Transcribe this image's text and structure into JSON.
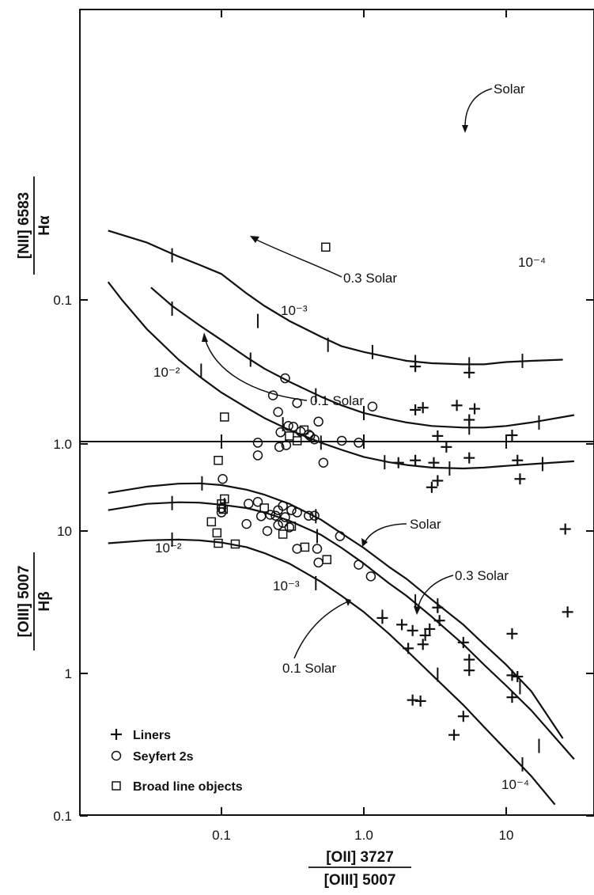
{
  "chart_data": [
    {
      "type": "scatter",
      "panel": "top",
      "yscale": "log",
      "xscale": "log",
      "ylim": [
        0.02,
        6
      ],
      "xlim": [
        0.012,
        50
      ],
      "ylabel": {
        "line1": "[NII] 6583",
        "line2": "Hα"
      },
      "yticks": [
        {
          "value": 0.1,
          "label": "0.1"
        },
        {
          "value": 1.0,
          "label": "1.0"
        }
      ],
      "annotations": {
        "solar": "Solar",
        "solar_03": "0.3 Solar",
        "solar_01": "0.1 Solar",
        "u_1e2": "10⁻²",
        "u_1e3": "10⁻³",
        "u_1e4": "10⁻⁴"
      },
      "series": [
        {
          "kind": "model-curve",
          "metallicity": "Solar",
          "x": [
            0.016,
            0.02,
            0.03,
            0.05,
            0.07,
            0.1,
            0.15,
            0.2,
            0.3,
            0.5,
            0.7,
            1.0,
            1.5,
            2,
            3,
            5,
            7,
            10,
            15,
            30
          ],
          "y": [
            0.075,
            0.1,
            0.16,
            0.26,
            0.34,
            0.44,
            0.56,
            0.66,
            0.8,
            0.98,
            1.1,
            1.23,
            1.34,
            1.4,
            1.46,
            1.48,
            1.46,
            1.42,
            1.38,
            1.32
          ]
        },
        {
          "kind": "model-curve",
          "metallicity": "0.3 Solar",
          "x": [
            0.032,
            0.045,
            0.07,
            0.1,
            0.15,
            0.2,
            0.3,
            0.5,
            0.7,
            1.0,
            1.5,
            2,
            3,
            5,
            7,
            10,
            15,
            30
          ],
          "y": [
            0.082,
            0.11,
            0.15,
            0.19,
            0.25,
            0.3,
            0.37,
            0.47,
            0.54,
            0.61,
            0.67,
            0.71,
            0.75,
            0.77,
            0.77,
            0.75,
            0.71,
            0.63
          ]
        },
        {
          "kind": "model-curve",
          "metallicity": "0.1 Solar",
          "x": [
            0.016,
            0.03,
            0.05,
            0.07,
            0.1,
            0.15,
            0.2,
            0.3,
            0.5,
            0.7,
            1.0,
            1.5,
            2,
            3,
            5,
            7,
            10,
            15,
            25
          ],
          "y": [
            0.033,
            0.04,
            0.05,
            0.057,
            0.066,
            0.09,
            0.11,
            0.14,
            0.18,
            0.21,
            0.23,
            0.25,
            0.265,
            0.275,
            0.28,
            0.28,
            0.27,
            0.265,
            0.26
          ]
        },
        {
          "kind": "ionization-ticks",
          "x": [
            0.072,
            0.27,
            0.5,
            1.4,
            4.0,
            18,
            0.045,
            0.16,
            0.46,
            1.0,
            5.5,
            17,
            0.045,
            0.18,
            0.56,
            1.15,
            2.3,
            5.5,
            13
          ],
          "y": [
            0.31,
            0.73,
            0.98,
            1.34,
            1.48,
            1.38,
            0.115,
            0.26,
            0.46,
            0.61,
            0.77,
            0.71,
            0.049,
            0.14,
            0.205,
            0.23,
            0.27,
            0.28,
            0.265
          ]
        },
        {
          "name": "Liners",
          "marker": "plus",
          "x": [
            26,
            3.0,
            3.3,
            12.5,
            1.75,
            2.3,
            3.1,
            12,
            5.5,
            3.8,
            3.3,
            11,
            2.3,
            2.6,
            4.5,
            5.5,
            6,
            2.3,
            5.5
          ],
          "y": [
            3.9,
            2.0,
            1.8,
            1.75,
            1.35,
            1.3,
            1.35,
            1.3,
            1.25,
            1.05,
            0.88,
            0.87,
            0.58,
            0.56,
            0.54,
            0.68,
            0.57,
            0.29,
            0.32
          ]
        },
        {
          "name": "Seyfert 2s",
          "marker": "circle",
          "x": [
            0.155,
            0.102,
            0.18,
            0.18,
            0.255,
            0.285,
            0.26,
            0.32,
            0.295,
            0.36,
            0.41,
            0.45,
            0.52,
            0.7,
            0.92,
            1.15,
            0.25,
            0.23,
            0.34,
            0.28,
            0.48,
            0.42
          ],
          "y": [
            2.6,
            1.75,
            1.2,
            0.98,
            1.05,
            1.02,
            0.83,
            0.76,
            0.75,
            0.82,
            0.86,
            0.93,
            1.35,
            0.95,
            0.98,
            0.55,
            0.6,
            0.46,
            0.52,
            0.35,
            0.7,
            0.88
          ]
        },
        {
          "name": "Broad line objects",
          "marker": "square",
          "x": [
            0.095,
            0.105,
            0.34,
            0.3,
            0.38,
            0.54
          ],
          "y": [
            1.3,
            0.65,
            0.95,
            0.88,
            0.8,
            0.043
          ]
        }
      ]
    },
    {
      "type": "scatter",
      "panel": "bottom",
      "yscale": "log",
      "xscale": "log",
      "ylim": [
        0.1,
        40
      ],
      "xlim": [
        0.012,
        50
      ],
      "xlabel": {
        "line1": "[OII] 3727",
        "line2": "[OIII] 5007"
      },
      "ylabel": {
        "line1": "[OIII] 5007",
        "line2": "Hβ"
      },
      "xticks": [
        {
          "value": 0.1,
          "label": "0.1"
        },
        {
          "value": 1.0,
          "label": "1.0"
        },
        {
          "value": 10,
          "label": "10"
        }
      ],
      "yticks": [
        {
          "value": 0.1,
          "label": "0.1"
        },
        {
          "value": 1,
          "label": "1"
        },
        {
          "value": 10,
          "label": "10"
        }
      ],
      "annotations": {
        "solar": "Solar",
        "solar_03": "0.3 Solar",
        "solar_01": "0.1 Solar",
        "u_1e2": "10⁻²",
        "u_1e3": "10⁻³",
        "u_1e4": "10⁻⁴"
      },
      "legend": {
        "placement": "bottom-left",
        "entries": [
          {
            "marker": "plus",
            "label": "Liners"
          },
          {
            "marker": "circle",
            "label": "Seyfert 2s"
          },
          {
            "marker": "square",
            "label": "Broad line objects"
          }
        ]
      },
      "series": [
        {
          "kind": "model-curve",
          "metallicity": "Solar",
          "x": [
            0.016,
            0.03,
            0.05,
            0.07,
            0.1,
            0.15,
            0.2,
            0.3,
            0.5,
            0.7,
            1.0,
            1.5,
            2,
            3,
            5,
            7,
            10,
            15,
            25
          ],
          "y": [
            18.5,
            20.5,
            21.5,
            21.6,
            21,
            19.5,
            18,
            15.5,
            12,
            9.6,
            7.6,
            5.6,
            4.6,
            3.3,
            2.2,
            1.6,
            1.15,
            0.75,
            0.35
          ]
        },
        {
          "kind": "model-curve",
          "metallicity": "0.3 Solar",
          "x": [
            0.016,
            0.03,
            0.05,
            0.07,
            0.1,
            0.15,
            0.2,
            0.3,
            0.5,
            0.7,
            1.0,
            1.5,
            2,
            3,
            5,
            7,
            10,
            15,
            30
          ],
          "y": [
            14,
            15.5,
            15.9,
            15.8,
            15.3,
            14.5,
            13.5,
            11.8,
            9.4,
            7.6,
            5.9,
            4.3,
            3.5,
            2.5,
            1.6,
            1.15,
            0.82,
            0.55,
            0.25
          ]
        },
        {
          "kind": "model-curve",
          "metallicity": "0.1 Solar",
          "x": [
            0.016,
            0.03,
            0.05,
            0.07,
            0.1,
            0.15,
            0.2,
            0.3,
            0.5,
            0.7,
            1.0,
            1.5,
            2,
            3,
            5,
            7,
            10,
            15,
            22
          ],
          "y": [
            8.2,
            8.6,
            8.7,
            8.6,
            8.3,
            7.7,
            7.0,
            5.9,
            4.4,
            3.5,
            2.7,
            1.9,
            1.45,
            0.98,
            0.6,
            0.42,
            0.29,
            0.19,
            0.12
          ]
        },
        {
          "kind": "ionization-ticks",
          "x": [
            0.073,
            0.46,
            3.3,
            17,
            0.045,
            0.105,
            0.47,
            2.3,
            12.5,
            0.045,
            0.46,
            1.35,
            3.3,
            13
          ],
          "y": [
            21.6,
            12.7,
            3.0,
            0.31,
            15.7,
            15.2,
            9.2,
            3.2,
            0.8,
            8.7,
            4.3,
            2.5,
            0.98,
            0.23
          ]
        },
        {
          "name": "Liners",
          "marker": "plus",
          "x": [
            27,
            3.3,
            3.4,
            2.9,
            1.35,
            1.85,
            2.2,
            2.7,
            2.05,
            2.6,
            5.0,
            5.5,
            5.5,
            11,
            11,
            11,
            12,
            2.2,
            2.5,
            5.0,
            4.3
          ],
          "y": [
            2.7,
            2.9,
            2.35,
            2.05,
            2.45,
            2.2,
            2.0,
            1.85,
            1.5,
            1.6,
            1.65,
            1.25,
            1.05,
            0.97,
            0.68,
            1.9,
            0.95,
            0.65,
            0.64,
            0.5,
            0.37
          ]
        },
        {
          "name": "Seyfert 2s",
          "marker": "circle",
          "x": [
            0.18,
            0.25,
            0.27,
            0.22,
            0.31,
            0.28,
            0.24,
            0.1,
            0.1,
            0.15,
            0.19,
            0.21,
            0.27,
            0.34,
            0.41,
            0.45,
            0.25,
            0.3,
            0.47,
            0.34,
            0.68,
            0.92,
            1.12,
            0.48
          ],
          "y": [
            16,
            14,
            15,
            13,
            14,
            12.5,
            12.8,
            13.5,
            14.5,
            11.2,
            12.7,
            10,
            11.4,
            13.5,
            12.8,
            12.8,
            11,
            10.6,
            7.5,
            7.5,
            9.2,
            5.8,
            4.8,
            6.0
          ]
        },
        {
          "name": "Broad line objects",
          "marker": "square",
          "x": [
            0.105,
            0.1,
            0.103,
            0.085,
            0.093,
            0.095,
            0.125,
            0.2,
            0.27,
            0.31,
            0.385,
            0.55
          ],
          "y": [
            16.8,
            15.5,
            14.2,
            11.6,
            9.7,
            8.2,
            8.1,
            14.5,
            9.5,
            10.8,
            7.7,
            6.3
          ]
        }
      ]
    }
  ]
}
